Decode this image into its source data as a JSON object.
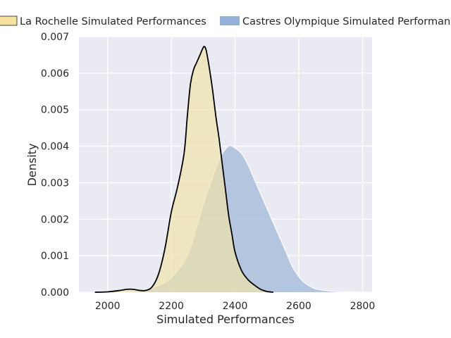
{
  "chart_data": {
    "type": "area",
    "xlabel": "Simulated Performances",
    "ylabel": "Density",
    "xlim": [
      1910,
      2830
    ],
    "ylim": [
      0,
      0.007
    ],
    "xticks": [
      2000,
      2200,
      2400,
      2600,
      2800
    ],
    "yticks": [
      0.0,
      0.001,
      0.002,
      0.003,
      0.004,
      0.005,
      0.006,
      0.007
    ],
    "xtick_labels": [
      "2000",
      "2200",
      "2400",
      "2600",
      "2800"
    ],
    "ytick_labels": [
      "0.000",
      "0.001",
      "0.002",
      "0.003",
      "0.004",
      "0.005",
      "0.006",
      "0.007"
    ],
    "grid": true,
    "legend_position": "top",
    "series": [
      {
        "name": "Castres Olympique Simulated Performances",
        "color": "#a9bedc",
        "legend_color": "#95b0d6",
        "edge": "#ffffff",
        "x": [
          1950,
          2000,
          2050,
          2100,
          2150,
          2200,
          2250,
          2280,
          2300,
          2320,
          2340,
          2360,
          2380,
          2390,
          2400,
          2420,
          2440,
          2460,
          2480,
          2500,
          2520,
          2540,
          2560,
          2580,
          2600,
          2620,
          2650,
          2700,
          2750,
          2800
        ],
        "y": [
          0.0,
          0.0,
          1e-05,
          5e-05,
          0.00015,
          0.0004,
          0.001,
          0.0018,
          0.0024,
          0.0029,
          0.0034,
          0.0038,
          0.004,
          0.004,
          0.00395,
          0.0038,
          0.0035,
          0.0031,
          0.0027,
          0.0023,
          0.0019,
          0.0015,
          0.0011,
          0.0007,
          0.00043,
          0.00025,
          0.0001,
          3e-05,
          1e-05,
          0.0
        ]
      },
      {
        "name": "La Rochelle Simulated Performances",
        "color": "#efe2ad",
        "legend_color": "#f5e39d",
        "edge": "#000000",
        "x": [
          1960,
          2000,
          2040,
          2060,
          2080,
          2100,
          2120,
          2140,
          2160,
          2180,
          2200,
          2220,
          2240,
          2250,
          2260,
          2270,
          2280,
          2290,
          2300,
          2305,
          2310,
          2320,
          2330,
          2340,
          2350,
          2360,
          2370,
          2380,
          2390,
          2400,
          2420,
          2440,
          2460,
          2480,
          2500,
          2520
        ],
        "y": [
          0.0,
          1e-05,
          5e-05,
          8e-05,
          8e-05,
          5e-05,
          5e-05,
          0.00015,
          0.0005,
          0.0012,
          0.0022,
          0.0029,
          0.0038,
          0.0048,
          0.0057,
          0.0061,
          0.0063,
          0.0065,
          0.0067,
          0.00672,
          0.0066,
          0.0061,
          0.0055,
          0.0048,
          0.0042,
          0.0035,
          0.0028,
          0.0021,
          0.0016,
          0.0011,
          0.0006,
          0.00035,
          0.0002,
          8e-05,
          2e-05,
          0.0
        ]
      }
    ]
  }
}
